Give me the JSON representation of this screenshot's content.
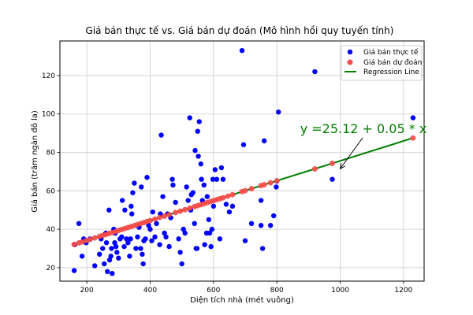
{
  "chart_data": {
    "type": "scatter",
    "title": "Giá bán thực tế vs. Giá bán dự đoán (Mô hình hồi quy tuyến tính)",
    "xlabel": "Diện tích nhà (mét vuông)",
    "ylabel": "Giá bán (trăm ngàn đô la)",
    "xlim": [
      115,
      1265
    ],
    "ylim": [
      13,
      138
    ],
    "x_ticks": [
      200,
      400,
      600,
      800,
      1000,
      1200
    ],
    "y_ticks": [
      20,
      40,
      60,
      80,
      100,
      120
    ],
    "grid": true,
    "legend_position": "top-right",
    "colors": {
      "actual": "#0000ff",
      "predicted": "#ff4d4d",
      "predicted_edge": "#d62728",
      "regression": "#008000",
      "grid": "#cccccc"
    },
    "series": [
      {
        "name": "Giá bán thực tế",
        "marker": "dot",
        "points": [
          [
            160,
            18.5
          ],
          [
            162,
            32
          ],
          [
            175,
            43
          ],
          [
            185,
            26
          ],
          [
            190,
            35
          ],
          [
            198,
            33
          ],
          [
            210,
            35
          ],
          [
            225,
            21
          ],
          [
            240,
            27
          ],
          [
            245,
            35
          ],
          [
            250,
            30
          ],
          [
            255,
            22
          ],
          [
            260,
            38
          ],
          [
            262,
            33
          ],
          [
            265,
            18
          ],
          [
            270,
            50
          ],
          [
            272,
            24
          ],
          [
            276,
            26
          ],
          [
            278,
            30
          ],
          [
            280,
            17
          ],
          [
            285,
            40
          ],
          [
            288,
            33
          ],
          [
            290,
            38
          ],
          [
            292,
            31
          ],
          [
            295,
            28
          ],
          [
            300,
            25
          ],
          [
            305,
            35
          ],
          [
            310,
            36
          ],
          [
            312,
            55
          ],
          [
            318,
            31
          ],
          [
            320,
            50
          ],
          [
            325,
            35
          ],
          [
            330,
            33
          ],
          [
            335,
            26
          ],
          [
            338,
            35
          ],
          [
            340,
            52
          ],
          [
            342,
            48
          ],
          [
            345,
            59
          ],
          [
            350,
            64
          ],
          [
            355,
            30
          ],
          [
            360,
            36
          ],
          [
            365,
            41
          ],
          [
            370,
            30
          ],
          [
            372,
            62
          ],
          [
            375,
            27
          ],
          [
            378,
            22
          ],
          [
            380,
            34
          ],
          [
            385,
            35
          ],
          [
            390,
            67
          ],
          [
            395,
            42
          ],
          [
            400,
            40
          ],
          [
            405,
            34
          ],
          [
            408,
            49
          ],
          [
            415,
            36
          ],
          [
            420,
            43
          ],
          [
            430,
            32
          ],
          [
            432,
            48
          ],
          [
            435,
            89
          ],
          [
            440,
            57
          ],
          [
            445,
            38
          ],
          [
            450,
            36
          ],
          [
            455,
            48
          ],
          [
            460,
            31
          ],
          [
            465,
            46
          ],
          [
            470,
            66
          ],
          [
            472,
            63
          ],
          [
            480,
            54
          ],
          [
            490,
            35
          ],
          [
            495,
            28
          ],
          [
            500,
            22
          ],
          [
            505,
            40
          ],
          [
            510,
            38
          ],
          [
            515,
            62
          ],
          [
            520,
            55
          ],
          [
            525,
            98
          ],
          [
            528,
            50
          ],
          [
            530,
            58
          ],
          [
            535,
            59
          ],
          [
            540,
            43
          ],
          [
            542,
            81
          ],
          [
            545,
            30
          ],
          [
            548,
            30
          ],
          [
            550,
            91
          ],
          [
            552,
            78
          ],
          [
            555,
            96
          ],
          [
            560,
            74
          ],
          [
            562,
            66
          ],
          [
            565,
            55
          ],
          [
            570,
            63
          ],
          [
            572,
            32
          ],
          [
            578,
            38
          ],
          [
            580,
            57
          ],
          [
            585,
            45
          ],
          [
            588,
            38
          ],
          [
            592,
            31
          ],
          [
            595,
            40
          ],
          [
            598,
            66
          ],
          [
            600,
            52
          ],
          [
            605,
            71
          ],
          [
            610,
            66
          ],
          [
            620,
            35
          ],
          [
            625,
            72
          ],
          [
            630,
            66
          ],
          [
            640,
            53
          ],
          [
            650,
            49
          ],
          [
            660,
            52
          ],
          [
            690,
            133
          ],
          [
            695,
            84
          ],
          [
            700,
            34
          ],
          [
            720,
            43
          ],
          [
            750,
            55
          ],
          [
            750,
            42
          ],
          [
            755,
            30
          ],
          [
            760,
            86
          ],
          [
            780,
            42
          ],
          [
            790,
            47
          ],
          [
            798,
            62
          ],
          [
            800,
            65
          ],
          [
            805,
            101
          ],
          [
            920,
            122
          ],
          [
            975,
            66
          ],
          [
            1230,
            98
          ]
        ]
      },
      {
        "name": "Giá bán dự đoán",
        "marker": "dot",
        "points": [
          [
            160,
            32.1
          ],
          [
            175,
            32.9
          ],
          [
            185,
            33.4
          ],
          [
            198,
            34.1
          ],
          [
            210,
            34.7
          ],
          [
            225,
            35.5
          ],
          [
            240,
            36.3
          ],
          [
            250,
            36.8
          ],
          [
            260,
            37.3
          ],
          [
            270,
            37.8
          ],
          [
            280,
            38.3
          ],
          [
            290,
            38.8
          ],
          [
            300,
            39.4
          ],
          [
            310,
            39.9
          ],
          [
            320,
            40.4
          ],
          [
            330,
            40.9
          ],
          [
            340,
            41.4
          ],
          [
            350,
            41.9
          ],
          [
            360,
            42.5
          ],
          [
            370,
            43.0
          ],
          [
            380,
            43.5
          ],
          [
            390,
            44.0
          ],
          [
            400,
            44.5
          ],
          [
            415,
            45.3
          ],
          [
            430,
            46.1
          ],
          [
            445,
            46.8
          ],
          [
            460,
            47.6
          ],
          [
            480,
            48.7
          ],
          [
            495,
            49.4
          ],
          [
            510,
            50.2
          ],
          [
            525,
            51.0
          ],
          [
            540,
            51.8
          ],
          [
            550,
            52.3
          ],
          [
            560,
            52.8
          ],
          [
            570,
            53.3
          ],
          [
            580,
            53.9
          ],
          [
            590,
            54.4
          ],
          [
            600,
            54.9
          ],
          [
            610,
            55.4
          ],
          [
            620,
            55.9
          ],
          [
            630,
            56.4
          ],
          [
            645,
            57.2
          ],
          [
            660,
            58.0
          ],
          [
            690,
            59.6
          ],
          [
            700,
            60.1
          ],
          [
            720,
            61.1
          ],
          [
            750,
            62.7
          ],
          [
            760,
            63.2
          ],
          [
            780,
            64.2
          ],
          [
            800,
            65.2
          ],
          [
            920,
            71.4
          ],
          [
            975,
            74.3
          ],
          [
            1230,
            87.5
          ]
        ]
      },
      {
        "name": "Regression Line",
        "marker": "line",
        "points": [
          [
            160,
            32.1
          ],
          [
            1230,
            87.5
          ]
        ]
      }
    ],
    "annotation": {
      "text": "y =25.12 + 0.05 * x",
      "arrow_target": [
        1000,
        71.5
      ],
      "text_anchor_point": [
        1040,
        90
      ]
    }
  }
}
